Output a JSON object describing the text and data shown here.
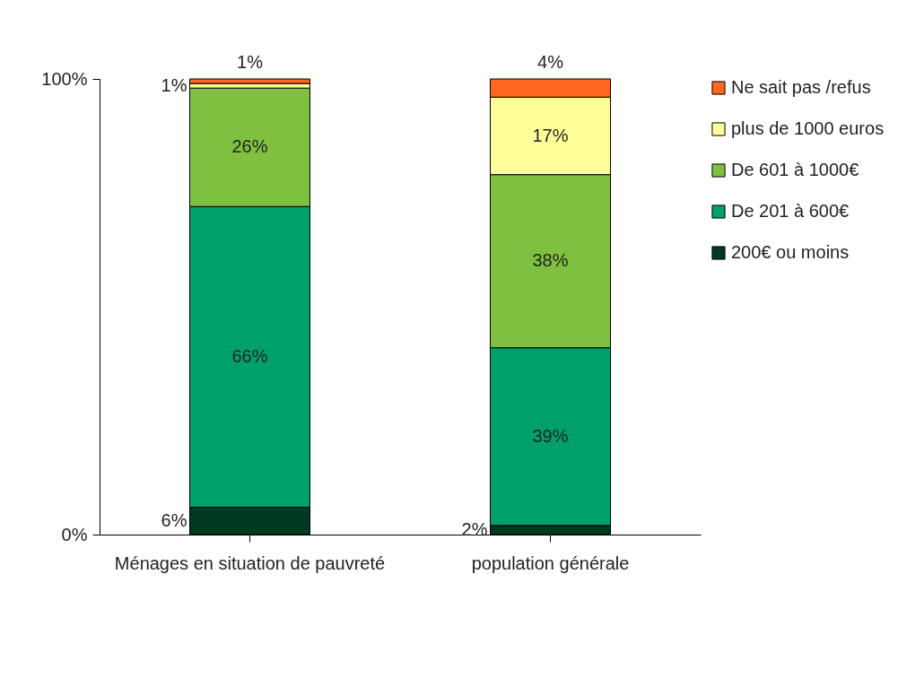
{
  "chart_data": {
    "type": "bar",
    "stacked": true,
    "categories": [
      "Ménages en situation de pauvreté",
      "population générale"
    ],
    "series": [
      {
        "name": "200€ ou moins",
        "color": "#003820",
        "values": [
          6,
          2
        ],
        "value_labels": [
          "6%",
          "2%"
        ]
      },
      {
        "name": "De 201 à 600€",
        "color": "#00a06a",
        "values": [
          66,
          39
        ],
        "value_labels": [
          "66%",
          "39%"
        ]
      },
      {
        "name": "De 601 à 1000€",
        "color": "#80c040",
        "values": [
          26,
          38
        ],
        "value_labels": [
          "26%",
          "38%"
        ]
      },
      {
        "name": "plus de 1000 euros",
        "color": "#ffff99",
        "values": [
          1,
          17
        ],
        "value_labels": [
          "1%",
          "17%"
        ]
      },
      {
        "name": "Ne sait pas /refus",
        "color": "#ff6620",
        "values": [
          1,
          4
        ],
        "value_labels": [
          "1%",
          "4%"
        ]
      }
    ],
    "ylim": [
      0,
      100
    ],
    "yticks": [
      {
        "value": 0,
        "label": "0%"
      },
      {
        "value": 100,
        "label": "100%"
      }
    ],
    "legend": "right"
  }
}
